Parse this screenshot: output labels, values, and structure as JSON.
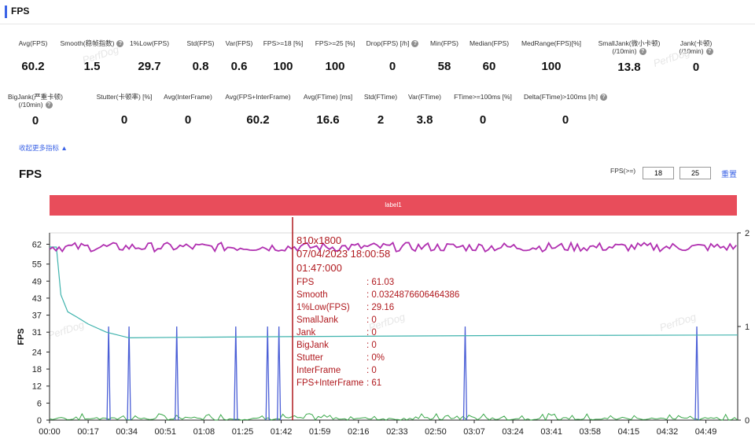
{
  "header": {
    "title": "FPS"
  },
  "metrics_row1": [
    {
      "label": "Avg(FPS)",
      "value": "60.2",
      "help": false
    },
    {
      "label": "Smooth(稳帧指数)",
      "value": "1.5",
      "help": true
    },
    {
      "label": "1%Low(FPS)",
      "value": "29.7",
      "help": false
    },
    {
      "label": "Std(FPS)",
      "value": "0.8",
      "help": false
    },
    {
      "label": "Var(FPS)",
      "value": "0.6",
      "help": false
    },
    {
      "label": "FPS>=18 [%]",
      "value": "100",
      "help": false
    },
    {
      "label": "FPS>=25 [%]",
      "value": "100",
      "help": false
    },
    {
      "label": "Drop(FPS) [/h]",
      "value": "0",
      "help": true
    },
    {
      "label": "Min(FPS)",
      "value": "58",
      "help": false
    },
    {
      "label": "Median(FPS)",
      "value": "60",
      "help": false
    },
    {
      "label": "MedRange(FPS)[%]",
      "value": "100",
      "help": false
    },
    {
      "label": "SmallJank(微小卡顿)",
      "label2": "(/10min)",
      "value": "13.8",
      "help": true
    },
    {
      "label": "Jank(卡顿)",
      "label2": "(/10min)",
      "value": "0",
      "help": true
    }
  ],
  "metrics_row2": [
    {
      "label": "BigJank(严重卡顿)",
      "label2": "(/10min)",
      "value": "0",
      "help": true
    },
    {
      "label": "Stutter(卡顿率) [%]",
      "value": "0",
      "help": false
    },
    {
      "label": "Avg(InterFrame)",
      "value": "0",
      "help": false
    },
    {
      "label": "Avg(FPS+InterFrame)",
      "value": "60.2",
      "help": false
    },
    {
      "label": "Avg(FTime) [ms]",
      "value": "16.6",
      "help": false
    },
    {
      "label": "Std(FTime)",
      "value": "2",
      "help": false
    },
    {
      "label": "Var(FTime)",
      "value": "3.8",
      "help": false
    },
    {
      "label": "FTime>=100ms [%]",
      "value": "0",
      "help": false
    },
    {
      "label": "Delta(FTime)>100ms [/h]",
      "value": "0",
      "help": true
    }
  ],
  "collapse_link": "收起更多指标 ▲",
  "chart_section": {
    "title": "FPS",
    "threshold_label": "FPS(>=)",
    "threshold1": "18",
    "threshold2": "25",
    "reset_label": "重置",
    "label_bar": "label1",
    "watermark": "PerfDog"
  },
  "tooltip": {
    "resolution": "810x1800",
    "datetime": "07/04/2023 18:00:58",
    "time": "01:47:000",
    "rows": [
      {
        "k": "FPS",
        "v": ": 61.03"
      },
      {
        "k": "Smooth",
        "v": ": 0.0324876606464386"
      },
      {
        "k": "1%Low(FPS)",
        "v": ": 29.16"
      },
      {
        "k": "SmallJank",
        "v": ": 0"
      },
      {
        "k": "Jank",
        "v": ": 0"
      },
      {
        "k": "BigJank",
        "v": ": 0"
      },
      {
        "k": "Stutter",
        "v": ": 0%"
      },
      {
        "k": "InterFrame",
        "v": ": 0"
      },
      {
        "k": "FPS+InterFrame",
        "v": ": 61"
      }
    ]
  },
  "colors": {
    "fps_line": "#b02fb0",
    "low_line": "#3fb3ad",
    "jank_spikes": "#4b5fd6",
    "smooth_line": "#3aa84a",
    "cursor": "#b0191e",
    "tooltip_text": "#b0191e"
  },
  "chart_data": {
    "type": "line",
    "ylabel": "FPS",
    "y_ticks": [
      0,
      6,
      12,
      18,
      24,
      31,
      37,
      43,
      49,
      55,
      62
    ],
    "y_right_ticks": [
      0,
      1,
      2
    ],
    "x_ticks": [
      "00:00",
      "00:17",
      "00:34",
      "00:51",
      "01:08",
      "01:25",
      "01:42",
      "01:59",
      "02:16",
      "02:33",
      "02:50",
      "03:07",
      "03:24",
      "03:41",
      "03:58",
      "04:15",
      "04:32",
      "04:49"
    ],
    "x_range_seconds": [
      0,
      303
    ],
    "y_range": [
      0,
      66
    ],
    "series": [
      {
        "name": "FPS",
        "approx_value": 61
      },
      {
        "name": "1%Low(FPS)",
        "points": [
          [
            0,
            61
          ],
          [
            3,
            61
          ],
          [
            5,
            45
          ],
          [
            8,
            38
          ],
          [
            12,
            36
          ],
          [
            17,
            35
          ],
          [
            25,
            31
          ],
          [
            35,
            29
          ],
          [
            60,
            29.2
          ],
          [
            120,
            29.5
          ],
          [
            200,
            29.8
          ],
          [
            303,
            30
          ]
        ]
      },
      {
        "name": "SmallJank",
        "axis": "right",
        "spikes_seconds": [
          26,
          35,
          56,
          82,
          96,
          101,
          183,
          285
        ]
      },
      {
        "name": "Smooth",
        "approx_range": [
          0,
          0.2
        ]
      }
    ],
    "cursor_seconds": 107
  }
}
